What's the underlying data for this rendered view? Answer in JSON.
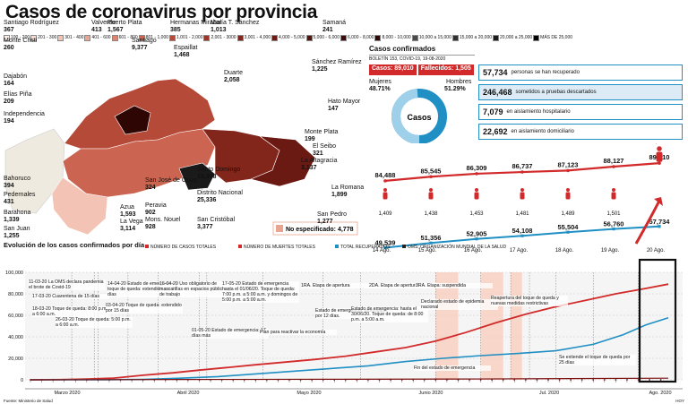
{
  "title": "Casos de coronavirus por provincia",
  "legend_ranges": [
    {
      "label": "100 - 200",
      "color": "#fdeee9"
    },
    {
      "label": "201 - 300",
      "color": "#f9ddd2"
    },
    {
      "label": "301 - 400",
      "color": "#f3c4b5"
    },
    {
      "label": "401 - 600",
      "color": "#e9a592"
    },
    {
      "label": "601 - 800",
      "color": "#dc8671"
    },
    {
      "label": "801 - 1,000",
      "color": "#cb6551"
    },
    {
      "label": "1,001 - 2,000",
      "color": "#b64a38"
    },
    {
      "label": "2,001 - 3000",
      "color": "#9c3526"
    },
    {
      "label": "3,001 - 4,000",
      "color": "#82251a"
    },
    {
      "label": "4,000 - 5,000",
      "color": "#6a1a12"
    },
    {
      "label": "5,000 - 6,000",
      "color": "#54120c"
    },
    {
      "label": "6,000 - 8,000",
      "color": "#3f0b08"
    },
    {
      "label": "8,000 - 10,000",
      "color": "#2e0705"
    },
    {
      "label": "10,000 a 15,000",
      "color": "#4a4a4a"
    },
    {
      "label": "15,000 a 20,000",
      "color": "#2f2f2f"
    },
    {
      "label": "20,000 a 25,000",
      "color": "#1a1a1a"
    },
    {
      "label": "MÁS DE 25,000",
      "color": "#000000"
    }
  ],
  "provinces": [
    {
      "name": "Santiago Rodríguez",
      "value": "367"
    },
    {
      "name": "Monte Cristi",
      "value": "260"
    },
    {
      "name": "Valverde",
      "value": "413"
    },
    {
      "name": "Puerto Plata",
      "value": "1,567"
    },
    {
      "name": "Santiago",
      "value": "9,377"
    },
    {
      "name": "Hermanas Mirabal",
      "value": "385"
    },
    {
      "name": "María T. Sánchez",
      "value": "1,013"
    },
    {
      "name": "Samaná",
      "value": "241"
    },
    {
      "name": "Espaillat",
      "value": "1,468"
    },
    {
      "name": "Duarte",
      "value": "2,058"
    },
    {
      "name": "Sánchez Ramírez",
      "value": "1,225"
    },
    {
      "name": "Dajabón",
      "value": "164"
    },
    {
      "name": "Elías Piña",
      "value": "209"
    },
    {
      "name": "Hato Mayor",
      "value": "147"
    },
    {
      "name": "Independencia",
      "value": "194"
    },
    {
      "name": "Monte Plata",
      "value": "199"
    },
    {
      "name": "El Seibo",
      "value": "321"
    },
    {
      "name": "La Altagracia",
      "value": "3,137"
    },
    {
      "name": "Bahoruco",
      "value": "394"
    },
    {
      "name": "Pedernales",
      "value": "431"
    },
    {
      "name": "Barahona",
      "value": "1,339"
    },
    {
      "name": "San Juan",
      "value": "1,255"
    },
    {
      "name": "Azua",
      "value": "1,593"
    },
    {
      "name": "La Vega",
      "value": "3,114"
    },
    {
      "name": "San José de Ocoa",
      "value": "324"
    },
    {
      "name": "Peravia",
      "value": "902"
    },
    {
      "name": "Mons. Nouel",
      "value": "928"
    },
    {
      "name": "Santo Domingo",
      "value": "19,338"
    },
    {
      "name": "Distrito Nacional",
      "value": "25,336"
    },
    {
      "name": "San Cristóbal",
      "value": "3,377"
    },
    {
      "name": "La Romana",
      "value": "1,899"
    },
    {
      "name": "San Pedro",
      "value": "1,277"
    }
  ],
  "unspecified": "No especificado: 4,778",
  "confirmed": {
    "title": "Casos confirmados",
    "bulletin": "BOLETÍN 153, COVID-19, 19-08-2020",
    "cases": "Casos: 89,010",
    "deaths": "Fallecidos: 1,505",
    "women_label": "Mujeres",
    "women_pct": "48.71%",
    "men_label": "Hombres",
    "men_pct": "51.29%",
    "donut_label": "Casos",
    "donut_women_fraction": 0.4871,
    "stats": [
      {
        "value": "57,734",
        "text": "personas se han recuperado"
      },
      {
        "value": "246,468",
        "text": "sometidos a pruebas descartados"
      },
      {
        "value": "7,079",
        "text": "en aislamiento hospitalario"
      },
      {
        "value": "22,692",
        "text": "en aislamiento domiciliario"
      }
    ]
  },
  "colors": {
    "red": "#d22a2a",
    "blue": "#1f8fc4",
    "dark": "#222",
    "highlight": "#f4a582"
  },
  "chart_data": [
    {
      "type": "line",
      "title": "",
      "categories": [
        "14 Ago.",
        "15 Ago.",
        "16 Ago.",
        "17 Ago.",
        "18 Ago.",
        "19 Ago.",
        "20 Ago."
      ],
      "series": [
        {
          "name": "",
          "values": [
            84488,
            85545,
            86309,
            86737,
            87123,
            88127,
            89010
          ],
          "labels": [
            "84,488",
            "85,545",
            "86,309",
            "86,737",
            "87,123",
            "88,127",
            "89,010"
          ]
        },
        {
          "name": "",
          "values": [
            49539,
            51356,
            52905,
            54108,
            55504,
            56760,
            57734
          ],
          "labels": [
            "49,539",
            "51,356",
            "52,905",
            "54,108",
            "55,504",
            "56,760",
            "57,734"
          ]
        },
        {
          "name": "",
          "values": [
            1409,
            1438,
            1453,
            1481,
            1489,
            1501,
            1505
          ],
          "labels": [
            "1,409",
            "1,438",
            "1,453",
            "1,481",
            "1,489",
            "1,501",
            "1,505"
          ]
        }
      ]
    },
    {
      "type": "line",
      "title": "Evolución de los casos confirmados por día",
      "legend": [
        "NÚMERO DE CASOS TOTALES",
        "NÚMERO DE MUERTES TOTALES",
        "TOTAL RECUPERADOS",
        "OMS: ORGANIZACIÓN MUNDIAL DE LA SALUD"
      ],
      "ylim": [
        0,
        100000
      ],
      "yticks": [
        "0",
        "20,000",
        "40,000",
        "60,000",
        "80,000",
        "100,000"
      ],
      "months": [
        "Marzo 2020",
        "Abril 2020",
        "Mayo 2020",
        "Junio 2020",
        "Jul. 2020",
        "Ago. 2020"
      ],
      "day_index_range": [
        0,
        170
      ],
      "series": [
        {
          "name": "NÚMERO DE CASOS TOTALES",
          "points": [
            [
              0,
              5
            ],
            [
              8,
              200
            ],
            [
              15,
              700
            ],
            [
              22,
              1500
            ],
            [
              30,
              4300
            ],
            [
              38,
              6500
            ],
            [
              45,
              9000
            ],
            [
              52,
              11300
            ],
            [
              60,
              14000
            ],
            [
              68,
              16500
            ],
            [
              76,
              19000
            ],
            [
              84,
              22000
            ],
            [
              92,
              26000
            ],
            [
              100,
              30000
            ],
            [
              108,
              36000
            ],
            [
              116,
              44000
            ],
            [
              124,
              53000
            ],
            [
              132,
              61000
            ],
            [
              140,
              68000
            ],
            [
              148,
              74000
            ],
            [
              156,
              80000
            ],
            [
              164,
              85000
            ],
            [
              170,
              89010
            ]
          ]
        },
        {
          "name": "TOTAL RECUPERADOS",
          "points": [
            [
              0,
              0
            ],
            [
              20,
              50
            ],
            [
              30,
              400
            ],
            [
              40,
              1500
            ],
            [
              50,
              3000
            ],
            [
              60,
              5500
            ],
            [
              70,
              8000
            ],
            [
              80,
              10500
            ],
            [
              90,
              13000
            ],
            [
              100,
              17000
            ],
            [
              110,
              20000
            ],
            [
              120,
              22500
            ],
            [
              130,
              24500
            ],
            [
              140,
              27000
            ],
            [
              150,
              33000
            ],
            [
              158,
              42000
            ],
            [
              164,
              51000
            ],
            [
              170,
              57734
            ]
          ]
        },
        {
          "name": "NÚMERO DE MUERTES TOTALES",
          "points": [
            [
              0,
              0
            ],
            [
              40,
              300
            ],
            [
              80,
              500
            ],
            [
              120,
              800
            ],
            [
              170,
              1505
            ]
          ]
        }
      ],
      "annotations": [
        "11-03-20 La OMS declara pandemia el brote de Covid-19",
        "17-03-20 Cuarentena de 15 días",
        "18-03-20 Toque de queda: 8:00 p.m. a 6:00 a.m.",
        "26-03-20 Toque de queda: 5:00 p.m. a 6:00 a.m.",
        "14-04-20 Estado de emergencia y toque de queda: extendido por 17 días",
        "03-04-20 Toque de queda: extendido por 15 días",
        "16-04-20 Uso obligatorio de mascarillas en espacios públicos y de trabajo",
        "01-05-20 Estado de emergencia: 17 días más",
        "17-05-20 Estado de emergencia hasta el 01/06/20. Toque de queda: 7:00 p.m. a 5:00 a.m. y domingos de 5:00 p.m. a 5:00 a.m.",
        "Plan para reactivar la economía",
        "1RA. Etapa de apertura",
        "2DA. Etapa de apertura",
        "3RA. Etapa: suspendida",
        "Estado de emergencia: prorrogado por 12 días.",
        "Estado de emergencia: hasta el 30/06/20. Toque de queda: de 8:00 p.m. a 5:00 a.m.",
        "Declarado estado de epidemia nacional",
        "Fin del estado de emergencia",
        "Reapertura del toque de queda y nuevas medidas restrictivas",
        "Se extiende el toque de queda por 25 días"
      ]
    }
  ],
  "footer_source": "Fuente: Ministerio de Salud",
  "footer_credit": "HOY"
}
